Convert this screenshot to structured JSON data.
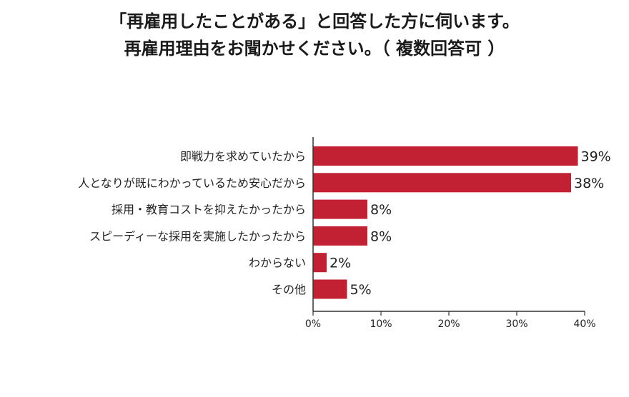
{
  "title": {
    "line1": "「再雇用したことがある」と回答した方に伺います。",
    "line2": "再雇用理由をお聞かせください。（ 複数回答可 ）"
  },
  "chart_data": {
    "type": "bar",
    "orientation": "horizontal",
    "categories": [
      "即戦力を求めていたから",
      "人となりが既にわかっているため安心だから",
      "採用・教育コストを抑えたかったから",
      "スピーディーな採用を実施したかったから",
      "わからない",
      "その他"
    ],
    "values": [
      39,
      38,
      8,
      8,
      2,
      5
    ],
    "value_labels": [
      "39%",
      "38%",
      "8%",
      "8%",
      "2%",
      "5%"
    ],
    "xlim": [
      0,
      40
    ],
    "ticks": [
      0,
      10,
      20,
      30,
      40
    ],
    "tick_labels": [
      "0%",
      "10%",
      "20%",
      "30%",
      "40%"
    ],
    "bar_color": "#c12133",
    "grid": false
  }
}
